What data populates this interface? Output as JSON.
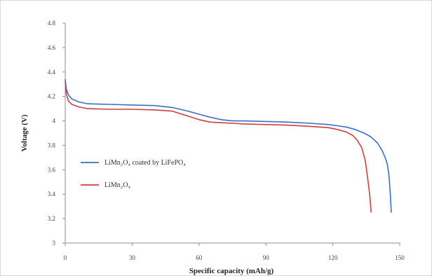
{
  "chart_data": {
    "type": "line",
    "xlabel": "Specific capacity (mAh/g)",
    "ylabel": "Voltage (V)",
    "xlim": [
      0,
      150
    ],
    "ylim": [
      3,
      4.8
    ],
    "xticks": [
      0,
      30,
      60,
      90,
      120,
      150
    ],
    "yticks": [
      3,
      3.2,
      3.4,
      3.6,
      3.8,
      4,
      4.2,
      4.4,
      4.6,
      4.8
    ],
    "grid": false,
    "legend_position": "middle-left",
    "series": [
      {
        "name": "LiMn2O4 coated by LiFePO4",
        "color": "#3b6fc4",
        "x": [
          0,
          0.5,
          1.5,
          3,
          6,
          10,
          20,
          30,
          40,
          48,
          55,
          60,
          65,
          70,
          75,
          80,
          90,
          100,
          110,
          118,
          122,
          126,
          130,
          134,
          137,
          140,
          142,
          143.5,
          144.5,
          145.2,
          145.8,
          146.2
        ],
        "y": [
          4.34,
          4.26,
          4.21,
          4.18,
          4.155,
          4.14,
          4.135,
          4.13,
          4.125,
          4.11,
          4.08,
          4.055,
          4.03,
          4.01,
          4.0,
          4.0,
          3.995,
          3.99,
          3.98,
          3.97,
          3.96,
          3.95,
          3.93,
          3.9,
          3.87,
          3.82,
          3.76,
          3.7,
          3.64,
          3.55,
          3.4,
          3.25
        ]
      },
      {
        "name": "LiMn2O4",
        "color": "#c9403f",
        "x": [
          0,
          0.5,
          1.5,
          3,
          6,
          10,
          20,
          30,
          40,
          48,
          55,
          60,
          65,
          70,
          75,
          80,
          90,
          100,
          110,
          118,
          122,
          126,
          129,
          131,
          133,
          134.5,
          135.5,
          136.5,
          137.2
        ],
        "y": [
          4.32,
          4.22,
          4.16,
          4.135,
          4.115,
          4.1,
          4.095,
          4.095,
          4.09,
          4.08,
          4.04,
          4.01,
          3.99,
          3.985,
          3.98,
          3.975,
          3.97,
          3.965,
          3.955,
          3.945,
          3.93,
          3.91,
          3.88,
          3.84,
          3.78,
          3.68,
          3.55,
          3.4,
          3.25
        ]
      }
    ],
    "legend": [
      {
        "label": "LiMn₂O₄ coated by LiFePO₄",
        "color": "#3b6fc4"
      },
      {
        "label": "LiMn₂O₄",
        "color": "#c9403f"
      }
    ]
  }
}
